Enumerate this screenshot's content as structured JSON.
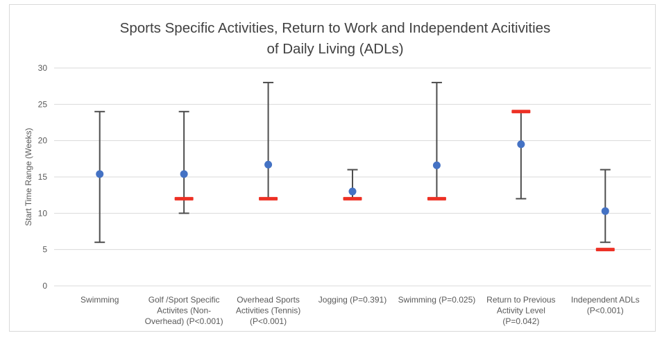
{
  "figure": {
    "background": "#ffffff",
    "frame_border_color": "#d9d9d9"
  },
  "chart_data": {
    "type": "scatter",
    "subtype": "mean-with-range-error-bars",
    "title": "Sports Specific Activities, Return to Work and Independent Acitivities of Daily Living (ADLs)",
    "title_line1": "Sports Specific Activities, Return to Work and Independent Acitivities",
    "title_line2": "of Daily Living (ADLs)",
    "xlabel": "",
    "ylabel": "Start Time Range (Weeks)",
    "ylim": [
      0,
      30
    ],
    "yticks": [
      0,
      5,
      10,
      15,
      20,
      25,
      30
    ],
    "grid": true,
    "legend_position": "none",
    "colors": {
      "mean_marker": "#4472c4",
      "range_marker": "#ed3024",
      "whisker": "#4d4d4d",
      "gridline": "#d9d9d9",
      "title_text": "#404040",
      "axis_text": "#595959"
    },
    "categories": [
      "Swimming",
      "Golf /Sport Specific Activites (Non-Overhead) (P<0.001)",
      "Overhead Sports Activities (Tennis) (P<0.001)",
      "Jogging (P=0.391)",
      "Swimming (P=0.025)",
      "Return to Previous Activity Level (P=0.042)",
      "Independent ADLs (P<0.001)"
    ],
    "series": [
      {
        "category": "Swimming",
        "category_lines": [
          "Swimming"
        ],
        "mean": 15.4,
        "range_low": 6,
        "range_high": 24,
        "red_marker": null
      },
      {
        "category": "Golf /Sport Specific Activites (Non-Overhead) (P<0.001)",
        "category_lines": [
          "Golf /Sport Specific",
          "Activites (Non-",
          "Overhead) (P<0.001)"
        ],
        "mean": 15.4,
        "range_low": 10,
        "range_high": 24,
        "red_marker": 12
      },
      {
        "category": "Overhead Sports Activities (Tennis) (P<0.001)",
        "category_lines": [
          "Overhead Sports",
          "Activities (Tennis)",
          "(P<0.001)"
        ],
        "mean": 16.7,
        "range_low": 12,
        "range_high": 28,
        "red_marker": 12
      },
      {
        "category": "Jogging (P=0.391)",
        "category_lines": [
          "Jogging (P=0.391)"
        ],
        "mean": 13,
        "range_low": 12,
        "range_high": 16,
        "red_marker": 12
      },
      {
        "category": "Swimming (P=0.025)",
        "category_lines": [
          "Swimming (P=0.025)"
        ],
        "mean": 16.6,
        "range_low": 12,
        "range_high": 28,
        "red_marker": 12
      },
      {
        "category": "Return to Previous Activity Level (P=0.042)",
        "category_lines": [
          "Return to Previous",
          "Activity Level",
          "(P=0.042)"
        ],
        "mean": 19.5,
        "range_low": 12,
        "range_high": 24,
        "red_marker": 24
      },
      {
        "category": "Independent ADLs (P<0.001)",
        "category_lines": [
          "Independent ADLs",
          "(P<0.001)"
        ],
        "mean": 10.3,
        "range_low": 6,
        "range_high": 16,
        "red_marker": 5
      }
    ]
  }
}
